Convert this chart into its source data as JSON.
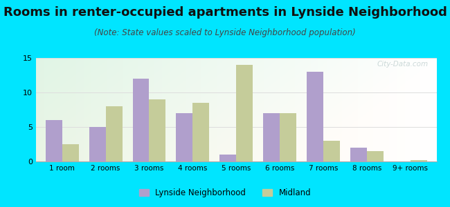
{
  "title": "Rooms in renter-occupied apartments in Lynside Neighborhood",
  "subtitle": "(Note: State values scaled to Lynside Neighborhood population)",
  "categories": [
    "1 room",
    "2 rooms",
    "3 rooms",
    "4 rooms",
    "5 rooms",
    "6 rooms",
    "7 rooms",
    "8 rooms",
    "9+ rooms"
  ],
  "lynside_values": [
    6,
    5,
    12,
    7,
    1,
    7,
    13,
    2,
    0
  ],
  "midland_values": [
    2.5,
    8,
    9,
    8.5,
    14,
    7,
    3,
    1.5,
    0.2
  ],
  "lynside_color": "#b09fcc",
  "midland_color": "#c5cc9a",
  "background_outer": "#00e5ff",
  "ylim": [
    0,
    15
  ],
  "yticks": [
    0,
    5,
    10,
    15
  ],
  "bar_width": 0.38,
  "title_fontsize": 13,
  "subtitle_fontsize": 8.5,
  "legend_label_1": "Lynside Neighborhood",
  "legend_label_2": "Midland",
  "grid_color": "#dddddd",
  "watermark_text": "City-Data.com"
}
